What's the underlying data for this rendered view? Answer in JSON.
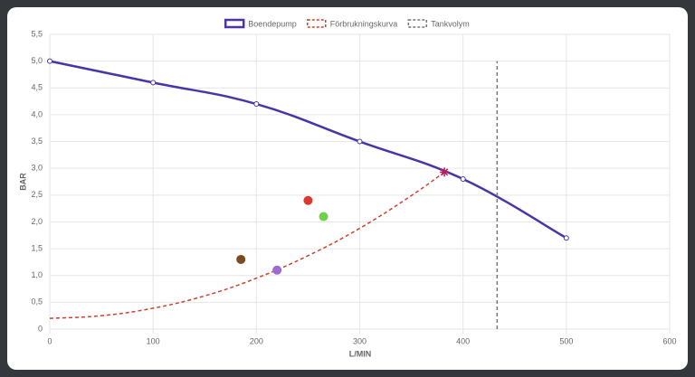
{
  "chart_data": {
    "type": "line",
    "x_label": "L/MIN",
    "y_label": "BAR",
    "xlim": [
      0,
      600
    ],
    "ylim": [
      0,
      5.5
    ],
    "xticks": [
      0,
      100,
      200,
      300,
      400,
      500,
      600
    ],
    "yticks": [
      0,
      {
        "value": 0.5,
        "label": "0,5"
      },
      {
        "value": 1,
        "label": "1,0"
      },
      {
        "value": 1.5,
        "label": "1,5"
      },
      {
        "value": 2,
        "label": "2,0"
      },
      {
        "value": 2.5,
        "label": "2,5"
      },
      {
        "value": 3,
        "label": "3,0"
      },
      {
        "value": 3.5,
        "label": "3,5"
      },
      {
        "value": 4,
        "label": "4,0"
      },
      {
        "value": 4.5,
        "label": "4,5"
      },
      {
        "value": 5,
        "label": "5,0"
      },
      {
        "value": 5.5,
        "label": "5,5"
      }
    ],
    "grid": true,
    "legend": "top",
    "series": [
      {
        "name": "Boendepump",
        "color": "#4a34a8",
        "style": "solid",
        "markers": true,
        "x": [
          0,
          100,
          200,
          300,
          400,
          500
        ],
        "values": [
          5.0,
          4.6,
          4.2,
          3.5,
          2.8,
          1.7
        ]
      },
      {
        "name": "Förbrukningskurva",
        "color": "#c9432f",
        "style": "dashed",
        "markers": false,
        "x": [
          0,
          50,
          100,
          150,
          200,
          250,
          300,
          350,
          382
        ],
        "values": [
          0.2,
          0.25,
          0.39,
          0.62,
          0.95,
          1.37,
          1.88,
          2.49,
          2.93
        ]
      },
      {
        "name": "Tankvolym",
        "color": "#777777",
        "style": "dashed",
        "markers": false,
        "x": [
          433,
          433
        ],
        "values": [
          0,
          5.0
        ]
      }
    ],
    "points": [
      {
        "x": 382,
        "y": 2.93,
        "color": "#c2185b",
        "shape": "star"
      },
      {
        "x": 185,
        "y": 1.3,
        "color": "#7b4a1e",
        "shape": "circle"
      },
      {
        "x": 250,
        "y": 2.4,
        "color": "#d93a2b",
        "shape": "circle"
      },
      {
        "x": 265,
        "y": 2.1,
        "color": "#6fd14a",
        "shape": "circle"
      },
      {
        "x": 220,
        "y": 1.1,
        "color": "#9b6bd0",
        "shape": "circle"
      }
    ]
  }
}
